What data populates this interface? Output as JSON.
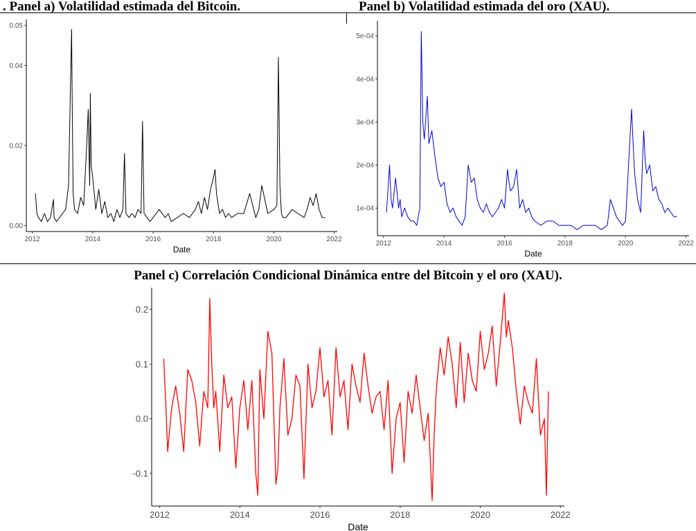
{
  "panels": {
    "a_title": ". Panel a) Volatilidad estimada del Bitcoin.",
    "b_title": "Panel b) Volatilidad estimada del oro (XAU).",
    "c_title": "Panel c) Correlación Condicional Dinámica entre del Bitcoin y el oro (XAU)."
  },
  "colors": {
    "a": "#000000",
    "b": "#0000cc",
    "c": "#ff0000"
  },
  "chart_data": [
    {
      "type": "line",
      "title": ". Panel a) Volatilidad estimada del Bitcoin.",
      "xlabel": "Date",
      "ylabel": "",
      "xlim": [
        2011.8,
        2022.1
      ],
      "ylim": [
        -0.0015,
        0.0515
      ],
      "xticks": [
        2012,
        2014,
        2016,
        2018,
        2020,
        2022
      ],
      "yticks": [
        0.0,
        0.02,
        0.04
      ],
      "ytick_labels": [
        "0.00",
        "0.02",
        "0.04"
      ],
      "extra_ytick": {
        "value": 0.05,
        "label": "0.05"
      },
      "grid": false,
      "series": [
        {
          "x": [
            2012.1,
            2012.15,
            2012.2,
            2012.3,
            2012.4,
            2012.5,
            2012.6,
            2012.7,
            2012.72,
            2012.8,
            2012.9,
            2013.0,
            2013.1,
            2013.2,
            2013.25,
            2013.3,
            2013.32,
            2013.35,
            2013.4,
            2013.5,
            2013.6,
            2013.7,
            2013.8,
            2013.85,
            2013.9,
            2013.92,
            2013.95,
            2014.0,
            2014.1,
            2014.2,
            2014.3,
            2014.4,
            2014.5,
            2014.6,
            2014.7,
            2014.8,
            2014.9,
            2015.0,
            2015.05,
            2015.1,
            2015.2,
            2015.3,
            2015.4,
            2015.5,
            2015.6,
            2015.65,
            2015.7,
            2015.8,
            2015.9,
            2016.0,
            2016.2,
            2016.4,
            2016.5,
            2016.6,
            2016.8,
            2017.0,
            2017.2,
            2017.4,
            2017.5,
            2017.6,
            2017.7,
            2017.8,
            2017.9,
            2018.0,
            2018.05,
            2018.1,
            2018.2,
            2018.3,
            2018.4,
            2018.5,
            2018.6,
            2018.8,
            2019.0,
            2019.2,
            2019.4,
            2019.5,
            2019.6,
            2019.8,
            2020.0,
            2020.1,
            2020.15,
            2020.2,
            2020.25,
            2020.3,
            2020.4,
            2020.6,
            2020.8,
            2021.0,
            2021.1,
            2021.2,
            2021.3,
            2021.4,
            2021.5,
            2021.6,
            2021.7
          ],
          "y": [
            0.008,
            0.003,
            0.002,
            0.001,
            0.003,
            0.001,
            0.002,
            0.0065,
            0.002,
            0.001,
            0.002,
            0.003,
            0.004,
            0.01,
            0.03,
            0.049,
            0.03,
            0.008,
            0.004,
            0.003,
            0.007,
            0.005,
            0.02,
            0.029,
            0.01,
            0.033,
            0.015,
            0.012,
            0.004,
            0.009,
            0.003,
            0.006,
            0.002,
            0.003,
            0.001,
            0.004,
            0.002,
            0.004,
            0.018,
            0.003,
            0.002,
            0.003,
            0.002,
            0.004,
            0.003,
            0.026,
            0.003,
            0.002,
            0.001,
            0.002,
            0.004,
            0.002,
            0.003,
            0.001,
            0.002,
            0.003,
            0.002,
            0.004,
            0.006,
            0.003,
            0.007,
            0.004,
            0.009,
            0.012,
            0.014,
            0.008,
            0.003,
            0.004,
            0.002,
            0.003,
            0.002,
            0.003,
            0.003,
            0.008,
            0.002,
            0.004,
            0.01,
            0.003,
            0.004,
            0.005,
            0.042,
            0.01,
            0.003,
            0.002,
            0.002,
            0.004,
            0.003,
            0.002,
            0.004,
            0.007,
            0.005,
            0.008,
            0.004,
            0.002,
            0.002
          ]
        }
      ]
    },
    {
      "type": "line",
      "title": "Panel b) Volatilidad estimada del oro (XAU).",
      "xlabel": "Date",
      "ylabel": "",
      "xlim": [
        2011.8,
        2022.1
      ],
      "ylim": [
        3.6e-05,
        0.000535
      ],
      "xticks": [
        2012,
        2014,
        2016,
        2018,
        2020,
        2022
      ],
      "yticks": [
        0.0001,
        0.0002,
        0.0003,
        0.0004,
        0.0005
      ],
      "ytick_labels": [
        "1e-04",
        "2e-04",
        "3e-04",
        "4e-04",
        "5e-04"
      ],
      "grid": false,
      "series": [
        {
          "x": [
            2012.1,
            2012.2,
            2012.25,
            2012.3,
            2012.4,
            2012.5,
            2012.55,
            2012.6,
            2012.7,
            2012.8,
            2012.9,
            2013.0,
            2013.1,
            2013.2,
            2013.25,
            2013.3,
            2013.35,
            2013.45,
            2013.5,
            2013.6,
            2013.7,
            2013.8,
            2013.9,
            2014.0,
            2014.1,
            2014.2,
            2014.3,
            2014.4,
            2014.5,
            2014.6,
            2014.7,
            2014.8,
            2014.9,
            2015.0,
            2015.1,
            2015.2,
            2015.3,
            2015.4,
            2015.5,
            2015.6,
            2015.7,
            2015.8,
            2015.9,
            2016.0,
            2016.1,
            2016.15,
            2016.2,
            2016.3,
            2016.4,
            2016.5,
            2016.6,
            2016.7,
            2016.8,
            2016.9,
            2017.0,
            2017.2,
            2017.4,
            2017.6,
            2017.8,
            2018.0,
            2018.2,
            2018.4,
            2018.6,
            2018.8,
            2019.0,
            2019.2,
            2019.4,
            2019.5,
            2019.6,
            2019.7,
            2019.8,
            2019.9,
            2020.0,
            2020.1,
            2020.2,
            2020.25,
            2020.3,
            2020.4,
            2020.5,
            2020.6,
            2020.65,
            2020.7,
            2020.8,
            2020.9,
            2021.0,
            2021.1,
            2021.2,
            2021.3,
            2021.4,
            2021.5,
            2021.6,
            2021.7
          ],
          "y": [
            9e-05,
            0.0002,
            0.00012,
            0.0001,
            0.00017,
            0.0001,
            0.00012,
            8e-05,
            0.0001,
            8e-05,
            7e-05,
            7e-05,
            6e-05,
            0.0001,
            0.00051,
            0.0003,
            0.00026,
            0.00036,
            0.00025,
            0.00028,
            0.00022,
            0.00017,
            0.00015,
            0.00016,
            0.00011,
            9e-05,
            0.0001,
            8e-05,
            7e-05,
            6e-05,
            8e-05,
            0.0002,
            0.00016,
            0.00017,
            0.00012,
            0.0001,
            9e-05,
            0.00011,
            9e-05,
            8e-05,
            9e-05,
            0.0001,
            0.00012,
            0.0001,
            0.00019,
            0.00016,
            0.00014,
            0.00015,
            0.00019,
            0.0001,
            0.00012,
            9e-05,
            0.0001,
            8e-05,
            7e-05,
            6e-05,
            7e-05,
            7e-05,
            6e-05,
            6e-05,
            6e-05,
            5e-05,
            6e-05,
            6e-05,
            6e-05,
            5e-05,
            6e-05,
            0.00012,
            0.0001,
            8e-05,
            7e-05,
            6e-05,
            7e-05,
            0.0002,
            0.00033,
            0.00025,
            0.00018,
            0.00012,
            9e-05,
            0.00028,
            0.00021,
            0.00018,
            0.0002,
            0.00014,
            0.00015,
            0.00012,
            0.00011,
            9e-05,
            0.0001,
            9e-05,
            8e-05,
            8e-05
          ]
        }
      ]
    },
    {
      "type": "line",
      "title": "Panel c) Correlación Condicional Dinámica entre del Bitcoin y el oro (XAU).",
      "xlabel": "Date",
      "ylabel": "",
      "xlim": [
        2011.8,
        2022.1
      ],
      "ylim": [
        -0.16,
        0.24
      ],
      "xticks": [
        2012,
        2014,
        2016,
        2018,
        2020,
        2022
      ],
      "yticks": [
        -0.1,
        0.0,
        0.1,
        0.2
      ],
      "ytick_labels": [
        "-0.1",
        "0.0",
        "0.1",
        "0.2"
      ],
      "grid": false,
      "series": [
        {
          "x": [
            2012.1,
            2012.15,
            2012.2,
            2012.3,
            2012.4,
            2012.5,
            2012.6,
            2012.7,
            2012.8,
            2012.9,
            2013.0,
            2013.1,
            2013.2,
            2013.25,
            2013.3,
            2013.35,
            2013.4,
            2013.5,
            2013.6,
            2013.7,
            2013.8,
            2013.9,
            2014.0,
            2014.1,
            2014.2,
            2014.3,
            2014.4,
            2014.45,
            2014.5,
            2014.6,
            2014.7,
            2014.8,
            2014.9,
            2014.95,
            2015.0,
            2015.1,
            2015.2,
            2015.3,
            2015.4,
            2015.5,
            2015.6,
            2015.7,
            2015.8,
            2015.9,
            2016.0,
            2016.1,
            2016.2,
            2016.3,
            2016.4,
            2016.5,
            2016.6,
            2016.7,
            2016.8,
            2016.9,
            2017.0,
            2017.1,
            2017.2,
            2017.3,
            2017.4,
            2017.5,
            2017.6,
            2017.7,
            2017.8,
            2017.9,
            2018.0,
            2018.1,
            2018.2,
            2018.3,
            2018.4,
            2018.5,
            2018.6,
            2018.7,
            2018.8,
            2018.85,
            2018.9,
            2019.0,
            2019.1,
            2019.2,
            2019.3,
            2019.4,
            2019.5,
            2019.6,
            2019.7,
            2019.8,
            2019.9,
            2020.0,
            2020.1,
            2020.2,
            2020.3,
            2020.4,
            2020.5,
            2020.6,
            2020.65,
            2020.7,
            2020.8,
            2020.9,
            2021.0,
            2021.1,
            2021.2,
            2021.3,
            2021.4,
            2021.5,
            2021.6,
            2021.65,
            2021.7
          ],
          "y": [
            0.11,
            0.03,
            -0.06,
            0.02,
            0.06,
            0.01,
            -0.06,
            0.09,
            0.07,
            0.03,
            -0.05,
            0.05,
            0.02,
            0.22,
            0.1,
            0.02,
            0.05,
            -0.06,
            0.08,
            0.02,
            0.04,
            -0.09,
            0.02,
            0.07,
            -0.02,
            0.07,
            -0.1,
            -0.14,
            0.09,
            0.0,
            0.16,
            0.12,
            -0.12,
            -0.09,
            0.02,
            0.11,
            -0.03,
            0.0,
            0.08,
            0.06,
            -0.11,
            0.1,
            0.02,
            0.05,
            0.13,
            0.04,
            0.07,
            -0.03,
            0.13,
            0.04,
            0.07,
            -0.02,
            0.1,
            0.06,
            0.03,
            0.12,
            0.06,
            0.01,
            0.04,
            0.05,
            -0.02,
            0.07,
            -0.1,
            0.0,
            0.03,
            -0.08,
            0.05,
            0.01,
            0.08,
            0.02,
            -0.04,
            0.01,
            -0.15,
            -0.03,
            0.05,
            0.13,
            0.08,
            0.15,
            0.1,
            0.02,
            0.14,
            0.03,
            0.12,
            0.07,
            0.05,
            0.16,
            0.09,
            0.12,
            0.17,
            0.06,
            0.14,
            0.23,
            0.15,
            0.18,
            0.13,
            0.05,
            -0.01,
            0.06,
            0.03,
            0.01,
            0.11,
            -0.03,
            0.0,
            -0.14,
            0.05
          ]
        }
      ]
    }
  ]
}
